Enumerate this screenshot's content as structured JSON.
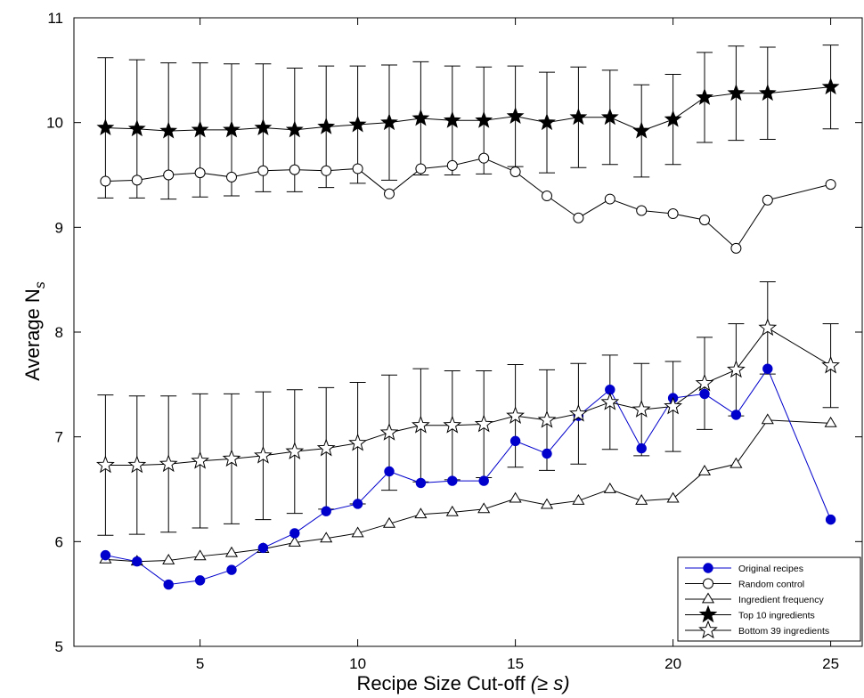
{
  "chart_data": {
    "type": "line",
    "title": "",
    "xlabel": "Recipe Size Cut-off",
    "xlabel_suffix": "(≥ s)",
    "ylabel": "Average N",
    "ylabel_sub": "s",
    "xlim": [
      1,
      26
    ],
    "ylim": [
      5,
      11
    ],
    "xticks": [
      5,
      10,
      15,
      20,
      25
    ],
    "yticks": [
      5,
      6,
      7,
      8,
      9,
      10,
      11
    ],
    "grid": false,
    "legend_position": "bottom-right",
    "x": [
      2,
      3,
      4,
      5,
      6,
      7,
      8,
      9,
      10,
      11,
      12,
      13,
      14,
      15,
      16,
      17,
      18,
      19,
      20,
      21,
      22,
      23,
      25
    ],
    "series": [
      {
        "name": "Original recipes",
        "marker": "filled-circle",
        "color": "#0000cc",
        "values": [
          5.87,
          5.81,
          5.59,
          5.63,
          5.73,
          5.94,
          6.08,
          6.29,
          6.36,
          6.67,
          6.56,
          6.58,
          6.58,
          6.96,
          6.84,
          7.2,
          7.45,
          6.89,
          7.37,
          7.41,
          7.21,
          7.65,
          6.21
        ]
      },
      {
        "name": "Random control",
        "marker": "open-circle",
        "color": "#000000",
        "values": [
          9.44,
          9.45,
          9.5,
          9.52,
          9.48,
          9.54,
          9.55,
          9.54,
          9.56,
          9.32,
          9.56,
          9.59,
          9.66,
          9.53,
          9.3,
          9.09,
          9.27,
          9.16,
          9.13,
          9.07,
          8.8,
          9.26,
          9.41
        ]
      },
      {
        "name": "Ingredient frequency",
        "marker": "open-triangle",
        "color": "#000000",
        "values": [
          5.83,
          5.81,
          5.82,
          5.86,
          5.89,
          5.93,
          5.99,
          6.03,
          6.08,
          6.17,
          6.26,
          6.28,
          6.31,
          6.41,
          6.35,
          6.39,
          6.5,
          6.39,
          6.41,
          6.67,
          6.74,
          7.16,
          7.13
        ]
      },
      {
        "name": "Top 10 ingredients",
        "marker": "filled-star",
        "color": "#000000",
        "values": [
          9.95,
          9.94,
          9.92,
          9.93,
          9.93,
          9.95,
          9.93,
          9.96,
          9.98,
          10.0,
          10.04,
          10.02,
          10.02,
          10.06,
          10.0,
          10.05,
          10.05,
          9.92,
          10.03,
          10.24,
          10.28,
          10.28,
          10.34
        ],
        "error": [
          0.67,
          0.66,
          0.65,
          0.64,
          0.63,
          0.61,
          0.59,
          0.58,
          0.56,
          0.55,
          0.54,
          0.52,
          0.51,
          0.48,
          0.48,
          0.48,
          0.45,
          0.44,
          0.43,
          0.43,
          0.45,
          0.44,
          0.4
        ]
      },
      {
        "name": "Bottom 39 ingredients",
        "marker": "open-star",
        "color": "#000000",
        "values": [
          6.73,
          6.73,
          6.74,
          6.77,
          6.79,
          6.82,
          6.86,
          6.89,
          6.94,
          7.04,
          7.11,
          7.11,
          7.12,
          7.2,
          7.16,
          7.22,
          7.33,
          7.26,
          7.29,
          7.51,
          7.64,
          8.04,
          7.68
        ],
        "error": [
          0.67,
          0.66,
          0.65,
          0.64,
          0.62,
          0.61,
          0.59,
          0.58,
          0.58,
          0.55,
          0.54,
          0.52,
          0.51,
          0.49,
          0.48,
          0.48,
          0.45,
          0.44,
          0.43,
          0.44,
          0.44,
          0.44,
          0.4
        ]
      }
    ]
  }
}
